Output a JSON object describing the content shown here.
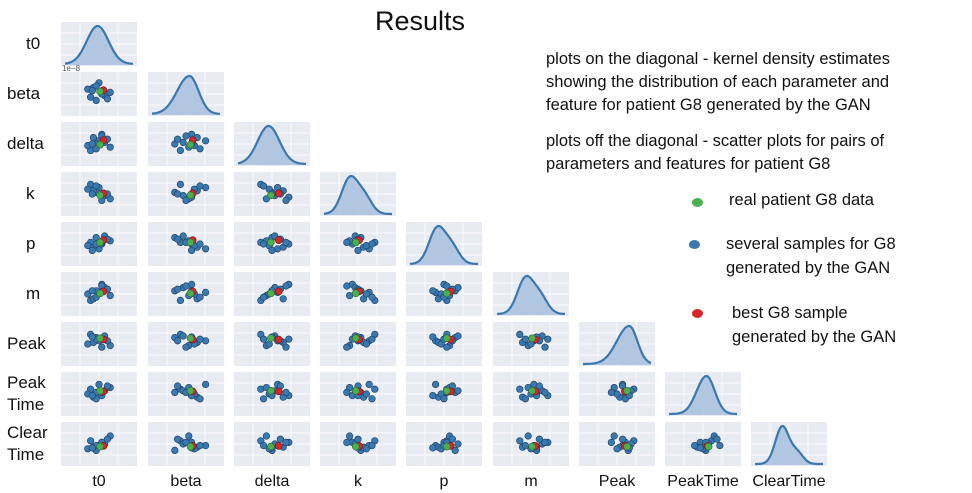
{
  "title": "Results",
  "description": {
    "diagonal": [
      "plots on the diagonal - kernel density estimates",
      "showing the distribution of each parameter and",
      "feature for patient G8 generated by the GAN"
    ],
    "off_diagonal": [
      "plots off the diagonal - scatter plots for pairs of",
      "parameters and features for patient G8"
    ]
  },
  "legend": [
    {
      "label": [
        "real patient G8 data"
      ],
      "color": "#4caf50"
    },
    {
      "label": [
        "several samples for G8",
        "generated by the GAN"
      ],
      "color": "#3a78b0"
    },
    {
      "label": [
        "best G8 sample",
        "generated by the GAN"
      ],
      "color": "#d62728"
    }
  ],
  "sci_label": "1e−8",
  "chart_data": {
    "type": "scatter",
    "variables": [
      "t0",
      "beta",
      "delta",
      "k",
      "p",
      "m",
      "Peak",
      "PeakTime",
      "ClearTime"
    ],
    "row_labels": [
      [
        "t0"
      ],
      [
        "beta"
      ],
      [
        "delta"
      ],
      [
        "k"
      ],
      [
        "p"
      ],
      [
        "m"
      ],
      [
        "Peak"
      ],
      [
        "Peak",
        "Time"
      ],
      [
        "Clear",
        "Time"
      ]
    ],
    "col_labels": [
      "t0",
      "beta",
      "delta",
      "k",
      "p",
      "m",
      "Peak",
      "PeakTime",
      "ClearTime"
    ],
    "samples": [
      [
        0.5,
        0.85,
        0.6,
        0.7,
        0.35,
        0.55,
        0.6,
        0.8,
        0.45
      ],
      [
        0.35,
        0.4,
        0.3,
        0.8,
        0.55,
        0.3,
        0.8,
        0.65,
        0.6
      ],
      [
        0.55,
        0.6,
        0.8,
        0.4,
        0.5,
        0.8,
        0.65,
        0.45,
        0.55
      ],
      [
        0.45,
        0.3,
        0.5,
        0.55,
        0.7,
        0.6,
        0.7,
        0.55,
        0.3
      ],
      [
        0.7,
        0.55,
        0.4,
        0.35,
        0.6,
        0.45,
        0.45,
        0.7,
        0.75
      ],
      [
        0.4,
        0.7,
        0.7,
        0.6,
        0.4,
        0.35,
        0.55,
        0.4,
        0.4
      ],
      [
        0.6,
        0.45,
        0.55,
        0.45,
        0.75,
        0.7,
        0.75,
        0.6,
        0.5
      ],
      [
        0.3,
        0.65,
        0.45,
        0.65,
        0.45,
        0.5,
        0.5,
        0.5,
        0.35
      ],
      [
        0.65,
        0.35,
        0.65,
        0.5,
        0.65,
        0.65,
        0.6,
        0.75,
        0.65
      ],
      [
        0.45,
        0.75,
        0.35,
        0.75,
        0.5,
        0.4,
        0.65,
        0.35,
        0.45
      ],
      [
        0.55,
        0.5,
        0.75,
        0.3,
        0.55,
        0.75,
        0.4,
        0.55,
        0.55
      ],
      [
        0.38,
        0.6,
        0.5,
        0.5,
        0.3,
        0.6,
        0.72,
        0.45,
        0.38
      ]
    ],
    "real": [
      0.52,
      0.58,
      0.48,
      0.46,
      0.55,
      0.52,
      0.68,
      0.6,
      0.42
    ],
    "best": [
      0.58,
      0.62,
      0.62,
      0.52,
      0.62,
      0.58,
      0.64,
      0.58,
      0.44
    ],
    "kde": [
      {
        "peak": 0.48,
        "spread": 0.16,
        "skew": 0.0,
        "shoulder": 0.0
      },
      {
        "peak": 0.55,
        "spread": 0.15,
        "skew": 0.2,
        "shoulder": 0.0
      },
      {
        "peak": 0.45,
        "spread": 0.16,
        "skew": 0.0,
        "shoulder": 0.0
      },
      {
        "peak": 0.38,
        "spread": 0.12,
        "skew": 0.0,
        "shoulder": 0.45
      },
      {
        "peak": 0.4,
        "spread": 0.12,
        "skew": 0.0,
        "shoulder": 0.45
      },
      {
        "peak": 0.42,
        "spread": 0.12,
        "skew": 0.0,
        "shoulder": 0.45
      },
      {
        "peak": 0.68,
        "spread": 0.14,
        "skew": 0.3,
        "shoulder": 0.0
      },
      {
        "peak": 0.55,
        "spread": 0.13,
        "skew": 0.1,
        "shoulder": 0.0
      },
      {
        "peak": 0.4,
        "spread": 0.1,
        "skew": 0.0,
        "shoulder": 0.3
      }
    ],
    "grid": true
  }
}
